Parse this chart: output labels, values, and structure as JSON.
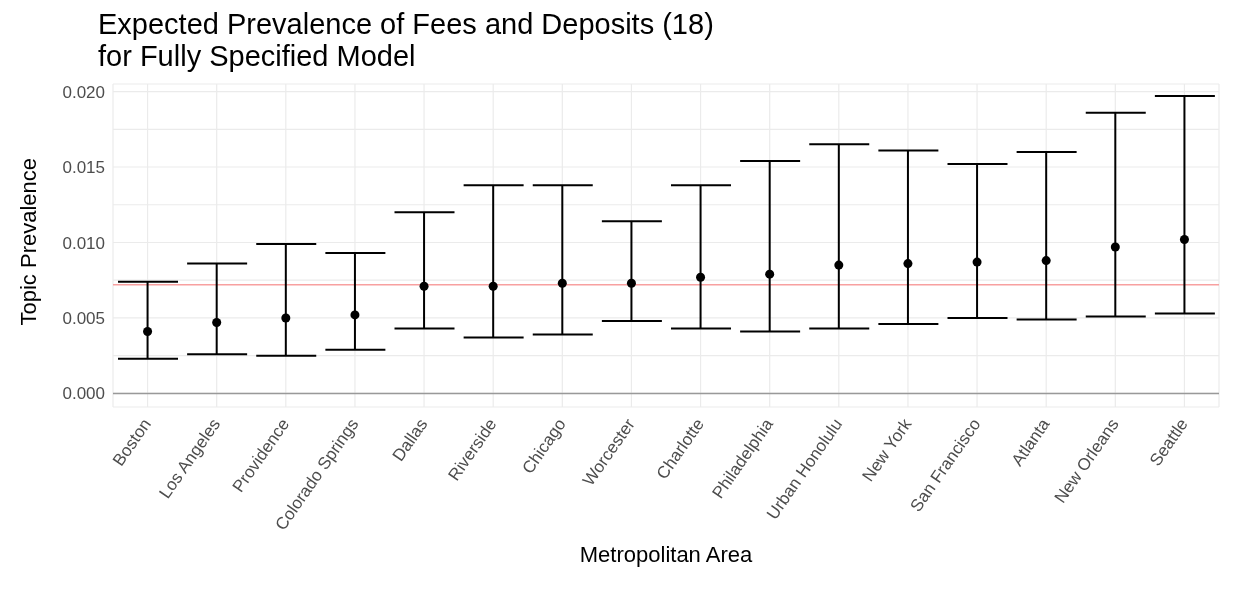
{
  "chart_data": {
    "type": "scatter",
    "title": "Expected Prevalence of Fees and Deposits (18)\nfor Fully Specified Model",
    "xlabel": "Metropolitan Area",
    "ylabel": "Topic Prevalence",
    "categories": [
      "Boston",
      "Los Angeles",
      "Providence",
      "Colorado Springs",
      "Dallas",
      "Riverside",
      "Chicago",
      "Worcester",
      "Charlotte",
      "Philadelphia",
      "Urban Honolulu",
      "New York",
      "San Francisco",
      "Atlanta",
      "New Orleans",
      "Seattle"
    ],
    "values": [
      0.0041,
      0.0047,
      0.005,
      0.0052,
      0.0071,
      0.0071,
      0.0073,
      0.0073,
      0.0077,
      0.0079,
      0.0085,
      0.0086,
      0.0087,
      0.0088,
      0.0097,
      0.0102
    ],
    "errors": [
      [
        0.0023,
        0.0074
      ],
      [
        0.0026,
        0.0086
      ],
      [
        0.0025,
        0.0099
      ],
      [
        0.0029,
        0.0093
      ],
      [
        0.0043,
        0.012
      ],
      [
        0.0037,
        0.0138
      ],
      [
        0.0039,
        0.0138
      ],
      [
        0.0048,
        0.0114
      ],
      [
        0.0043,
        0.0138
      ],
      [
        0.0041,
        0.0154
      ],
      [
        0.0043,
        0.0165
      ],
      [
        0.0046,
        0.0161
      ],
      [
        0.005,
        0.0152
      ],
      [
        0.0049,
        0.016
      ],
      [
        0.0051,
        0.0186
      ],
      [
        0.0053,
        0.0197
      ]
    ],
    "color": "#000000",
    "marker": "circle",
    "grid": true,
    "legend": false,
    "ylim": [
      -0.0009,
      0.0205
    ],
    "yticks": [
      {
        "value": 0,
        "label": "0.000"
      },
      {
        "value": 0.0025,
        "label": null
      },
      {
        "value": 0.005,
        "label": "0.005"
      },
      {
        "value": 0.0075,
        "label": null
      },
      {
        "value": 0.01,
        "label": "0.010"
      },
      {
        "value": 0.0125,
        "label": null
      },
      {
        "value": 0.015,
        "label": "0.015"
      },
      {
        "value": 0.0175,
        "label": null
      },
      {
        "value": 0.02,
        "label": "0.020"
      }
    ],
    "ref_lines": [
      {
        "axis": "y",
        "value": 0,
        "color": "#999999"
      },
      {
        "axis": "y",
        "value": 0.0072,
        "color": "#f8a0a0"
      }
    ]
  }
}
